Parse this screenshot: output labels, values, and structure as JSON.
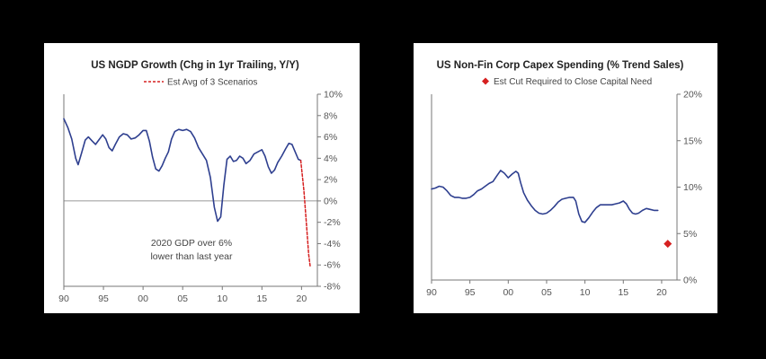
{
  "charts": [
    {
      "title": "US NGDP Growth (Chg in 1yr Trailing, Y/Y)",
      "legend": "Est Avg of 3 Scenarios",
      "annotation_line1": "2020 GDP over 6%",
      "annotation_line2": "lower than last year"
    },
    {
      "title": "US Non-Fin Corp Capex Spending (% Trend Sales)",
      "legend": "Est Cut Required to Close Capital Need"
    }
  ],
  "colors": {
    "series": "#2e3f8f",
    "estimate": "#d62020"
  },
  "chart_data": [
    {
      "type": "line",
      "title": "US NGDP Growth (Chg in 1yr Trailing, Y/Y)",
      "xlabel": "",
      "ylabel": "",
      "xlim": [
        1990,
        2022
      ],
      "ylim": [
        -8,
        10
      ],
      "x_ticks": [
        1990,
        1995,
        2000,
        2005,
        2010,
        2015,
        2020
      ],
      "x_tick_labels": [
        "90",
        "95",
        "00",
        "05",
        "10",
        "15",
        "20"
      ],
      "y_ticks": [
        -8,
        -6,
        -4,
        -2,
        0,
        2,
        4,
        6,
        8,
        10
      ],
      "y_tick_labels": [
        "-8%",
        "-6%",
        "-4%",
        "-2%",
        "0%",
        "2%",
        "4%",
        "6%",
        "8%",
        "10%"
      ],
      "y_axis_side": "right",
      "legend_position": "top-center",
      "annotation": "2020 GDP over 6% lower than last year",
      "series": [
        {
          "values": [
            [
              1990,
              7.7
            ],
            [
              1990.5,
              6.9
            ],
            [
              1991,
              5.8
            ],
            [
              1991.5,
              4.0
            ],
            [
              1991.8,
              3.4
            ],
            [
              1992.2,
              4.4
            ],
            [
              1992.7,
              5.7
            ],
            [
              1993.1,
              6.0
            ],
            [
              1993.6,
              5.6
            ],
            [
              1994,
              5.3
            ],
            [
              1994.4,
              5.7
            ],
            [
              1994.9,
              6.2
            ],
            [
              1995.3,
              5.8
            ],
            [
              1995.7,
              5.0
            ],
            [
              1996.1,
              4.7
            ],
            [
              1996.5,
              5.3
            ],
            [
              1997,
              6.0
            ],
            [
              1997.5,
              6.3
            ],
            [
              1998,
              6.2
            ],
            [
              1998.5,
              5.8
            ],
            [
              1999,
              5.9
            ],
            [
              1999.5,
              6.2
            ],
            [
              2000,
              6.6
            ],
            [
              2000.4,
              6.6
            ],
            [
              2000.8,
              5.6
            ],
            [
              2001.2,
              4.1
            ],
            [
              2001.6,
              3.0
            ],
            [
              2002,
              2.8
            ],
            [
              2002.4,
              3.3
            ],
            [
              2002.8,
              4.0
            ],
            [
              2003.2,
              4.6
            ],
            [
              2003.6,
              5.8
            ],
            [
              2004,
              6.5
            ],
            [
              2004.5,
              6.7
            ],
            [
              2005,
              6.6
            ],
            [
              2005.5,
              6.7
            ],
            [
              2006,
              6.5
            ],
            [
              2006.5,
              5.9
            ],
            [
              2007,
              5.0
            ],
            [
              2007.5,
              4.4
            ],
            [
              2008,
              3.8
            ],
            [
              2008.5,
              2.2
            ],
            [
              2009,
              -0.6
            ],
            [
              2009.4,
              -1.9
            ],
            [
              2009.8,
              -1.5
            ],
            [
              2010.2,
              1.5
            ],
            [
              2010.6,
              3.9
            ],
            [
              2011,
              4.2
            ],
            [
              2011.4,
              3.7
            ],
            [
              2011.8,
              3.8
            ],
            [
              2012.2,
              4.2
            ],
            [
              2012.6,
              4.0
            ],
            [
              2013,
              3.5
            ],
            [
              2013.5,
              3.8
            ],
            [
              2014,
              4.4
            ],
            [
              2014.5,
              4.6
            ],
            [
              2015,
              4.8
            ],
            [
              2015.4,
              4.2
            ],
            [
              2015.8,
              3.2
            ],
            [
              2016.2,
              2.6
            ],
            [
              2016.6,
              2.9
            ],
            [
              2017,
              3.6
            ],
            [
              2017.5,
              4.2
            ],
            [
              2018,
              4.9
            ],
            [
              2018.4,
              5.4
            ],
            [
              2018.8,
              5.3
            ],
            [
              2019.2,
              4.6
            ],
            [
              2019.6,
              3.9
            ],
            [
              2019.9,
              3.8
            ]
          ]
        },
        {
          "name": "Est Avg of 3 Scenarios",
          "style": "dashed",
          "values": [
            [
              2019.9,
              3.8
            ],
            [
              2020.3,
              1.0
            ],
            [
              2020.6,
              -2.0
            ],
            [
              2020.9,
              -5.0
            ],
            [
              2021.1,
              -6.2
            ]
          ]
        }
      ]
    },
    {
      "type": "line",
      "title": "US Non-Fin Corp Capex Spending (% Trend Sales)",
      "xlabel": "",
      "ylabel": "",
      "xlim": [
        1990,
        2022
      ],
      "ylim": [
        0,
        20
      ],
      "x_ticks": [
        1990,
        1995,
        2000,
        2005,
        2010,
        2015,
        2020
      ],
      "x_tick_labels": [
        "90",
        "95",
        "00",
        "05",
        "10",
        "15",
        "20"
      ],
      "y_ticks": [
        0,
        5,
        10,
        15,
        20
      ],
      "y_tick_labels": [
        "0%",
        "5%",
        "10%",
        "15%",
        "20%"
      ],
      "y_axis_side": "right",
      "legend_position": "top-center",
      "series": [
        {
          "values": [
            [
              1990,
              9.8
            ],
            [
              1990.5,
              9.9
            ],
            [
              1991,
              10.1
            ],
            [
              1991.5,
              10.0
            ],
            [
              1992,
              9.6
            ],
            [
              1992.5,
              9.1
            ],
            [
              1993,
              8.9
            ],
            [
              1993.5,
              8.9
            ],
            [
              1994,
              8.8
            ],
            [
              1994.5,
              8.8
            ],
            [
              1995,
              8.9
            ],
            [
              1995.5,
              9.2
            ],
            [
              1996,
              9.6
            ],
            [
              1996.5,
              9.8
            ],
            [
              1997,
              10.1
            ],
            [
              1997.5,
              10.4
            ],
            [
              1998,
              10.6
            ],
            [
              1998.5,
              11.2
            ],
            [
              1999,
              11.8
            ],
            [
              1999.5,
              11.5
            ],
            [
              2000,
              11.0
            ],
            [
              2000.5,
              11.4
            ],
            [
              2001,
              11.7
            ],
            [
              2001.3,
              11.5
            ],
            [
              2001.6,
              10.5
            ],
            [
              2002,
              9.4
            ],
            [
              2002.5,
              8.6
            ],
            [
              2003,
              8.0
            ],
            [
              2003.5,
              7.5
            ],
            [
              2004,
              7.2
            ],
            [
              2004.5,
              7.1
            ],
            [
              2005,
              7.2
            ],
            [
              2005.5,
              7.5
            ],
            [
              2006,
              7.9
            ],
            [
              2006.5,
              8.4
            ],
            [
              2007,
              8.7
            ],
            [
              2007.5,
              8.8
            ],
            [
              2008,
              8.9
            ],
            [
              2008.5,
              8.9
            ],
            [
              2008.8,
              8.5
            ],
            [
              2009.2,
              7.1
            ],
            [
              2009.6,
              6.3
            ],
            [
              2010,
              6.2
            ],
            [
              2010.5,
              6.7
            ],
            [
              2011,
              7.3
            ],
            [
              2011.5,
              7.8
            ],
            [
              2012,
              8.1
            ],
            [
              2012.5,
              8.1
            ],
            [
              2013,
              8.1
            ],
            [
              2013.5,
              8.1
            ],
            [
              2014,
              8.2
            ],
            [
              2014.5,
              8.3
            ],
            [
              2015,
              8.5
            ],
            [
              2015.4,
              8.2
            ],
            [
              2015.8,
              7.6
            ],
            [
              2016.2,
              7.2
            ],
            [
              2016.6,
              7.1
            ],
            [
              2017,
              7.2
            ],
            [
              2017.5,
              7.5
            ],
            [
              2018,
              7.7
            ],
            [
              2018.5,
              7.6
            ],
            [
              2019,
              7.5
            ],
            [
              2019.5,
              7.5
            ]
          ]
        },
        {
          "name": "Est Cut Required to Close Capital Need",
          "style": "marker-diamond",
          "values": [
            [
              2020.8,
              3.9
            ]
          ]
        }
      ]
    }
  ]
}
